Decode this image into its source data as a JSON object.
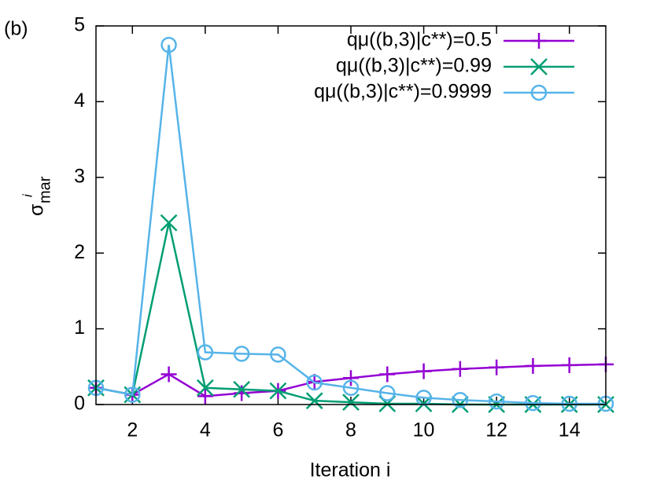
{
  "chart_data": {
    "type": "line",
    "panel_label": "(b)",
    "xlabel": "Iteration i",
    "ylabel": {
      "symbol": "σ",
      "superscript": "i",
      "subscript": "mar"
    },
    "x": [
      1,
      2,
      3,
      4,
      5,
      6,
      7,
      8,
      9,
      10,
      11,
      12,
      13,
      14,
      15
    ],
    "xlim": [
      1,
      15
    ],
    "xticks": [
      2,
      4,
      6,
      8,
      10,
      12,
      14
    ],
    "ylim": [
      0,
      5
    ],
    "yticks": [
      0,
      1,
      2,
      3,
      4,
      5
    ],
    "legend": "upper right",
    "series": [
      {
        "name": "qμ((b,3)|c**)=0.5",
        "color": "#9400d3",
        "marker": "plus",
        "values": [
          0.22,
          0.13,
          0.4,
          0.11,
          0.15,
          0.18,
          0.3,
          0.35,
          0.4,
          0.44,
          0.47,
          0.49,
          0.51,
          0.52,
          0.53
        ]
      },
      {
        "name": "qμ((b,3)|c**)=0.99",
        "color": "#009e73",
        "marker": "cross",
        "values": [
          0.22,
          0.13,
          2.4,
          0.22,
          0.2,
          0.18,
          0.05,
          0.03,
          0.01,
          0.01,
          0,
          0,
          0,
          0,
          0
        ]
      },
      {
        "name": "qμ((b,3)|c**)=0.9999",
        "color": "#56b4e9",
        "marker": "circle",
        "values": [
          0.22,
          0.13,
          4.75,
          0.69,
          0.67,
          0.66,
          0.29,
          0.22,
          0.15,
          0.09,
          0.06,
          0.04,
          0.02,
          0.01,
          0.01
        ]
      }
    ]
  }
}
